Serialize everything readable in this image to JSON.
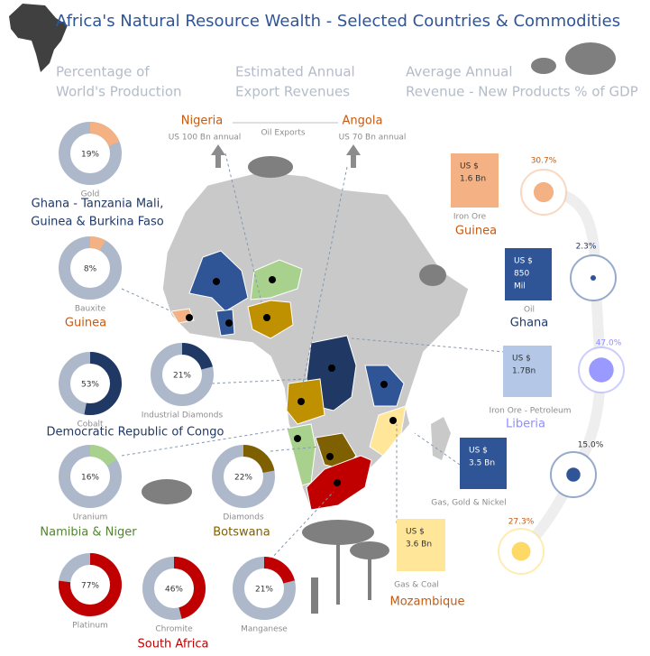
{
  "title": "Africa's Natural Resource Wealth - Selected Countries & Commodities",
  "headers": [
    [
      "Percentage of",
      "World's Production"
    ],
    [
      "Estimated Annual",
      "Export Revenues"
    ],
    [
      "Average Annual",
      "Revenue - New Products %  of GDP"
    ]
  ],
  "donuts": [
    {
      "name": "Gold",
      "value": 19,
      "value_label": "19%",
      "color": "#f4b183"
    },
    {
      "name": "Bauxite",
      "value": 8,
      "value_label": "8%",
      "color": "#f4b183"
    },
    {
      "name": "Cobalt",
      "value": 53,
      "value_label": "53%",
      "color": "#1f3864"
    },
    {
      "name": "Industrial Diamonds",
      "value": 21,
      "value_label": "21%",
      "color": "#1f3864"
    },
    {
      "name": "Uranium",
      "value": 16,
      "value_label": "16%",
      "color": "#a9d18e"
    },
    {
      "name": "Diamonds",
      "value": 22,
      "value_label": "22%",
      "color": "#7f6000"
    },
    {
      "name": "Platinum",
      "value": 77,
      "value_label": "77%",
      "color": "#c00000"
    },
    {
      "name": "Chromite",
      "value": 46,
      "value_label": "46%",
      "color": "#c00000"
    },
    {
      "name": "Manganese",
      "value": 21,
      "value_label": "21%",
      "color": "#c00000"
    }
  ],
  "groups": [
    {
      "lines": [
        "Ghana - Tanzania Mali,",
        "Guinea & Burkina Faso"
      ],
      "color": "#1f3864"
    },
    {
      "lines": [
        "Guinea"
      ],
      "color": "#c55a11"
    },
    {
      "lines": [
        "Democratic Republic of Congo"
      ],
      "color": "#1f3864"
    },
    {
      "lines": [
        "Namibia & Niger"
      ],
      "color": "#548235"
    },
    {
      "lines": [
        "Botswana"
      ],
      "color": "#7f6000"
    },
    {
      "lines": [
        "South Africa"
      ],
      "color": "#c00000"
    }
  ],
  "oil_exports": {
    "label": "Oil Exports",
    "countries": [
      {
        "name": "Nigeria",
        "amount": "US 100 Bn annual"
      },
      {
        "name": "Angola",
        "amount": "US 70 Bn annual"
      }
    ]
  },
  "revenues": [
    {
      "country": "Guinea",
      "product": "Iron Ore",
      "amount": [
        "US $",
        "1.6 Bn"
      ],
      "value": 30.7,
      "value_label": "30.7%",
      "color": "#f4b183",
      "country_color": "#c55a11"
    },
    {
      "country": "Ghana",
      "product": "Oil",
      "amount": [
        "US $",
        "850",
        "Mil"
      ],
      "value": 2.3,
      "value_label": "2.3%",
      "color": "#2f5597",
      "country_color": "#1f3864"
    },
    {
      "country": "Liberia",
      "product": "Iron Ore - Petroleum",
      "amount": [
        "US $",
        "1.7Bn"
      ],
      "value": 47.0,
      "value_label": "47.0%",
      "color": "#9999ff",
      "country_color": "#8f8fff"
    },
    {
      "product": "Gas, Gold & Nickel",
      "amount": [
        "US $",
        "3.5 Bn"
      ],
      "value": 15.0,
      "value_label": "15.0%",
      "color": "#2f5597"
    },
    {
      "country": "Mozambique",
      "product": "Gas & Coal",
      "amount": [
        "US $",
        "3.6 Bn"
      ],
      "value": 27.3,
      "value_label": "27.3%",
      "color": "#ffd966",
      "country_color": "#c55a11"
    }
  ]
}
